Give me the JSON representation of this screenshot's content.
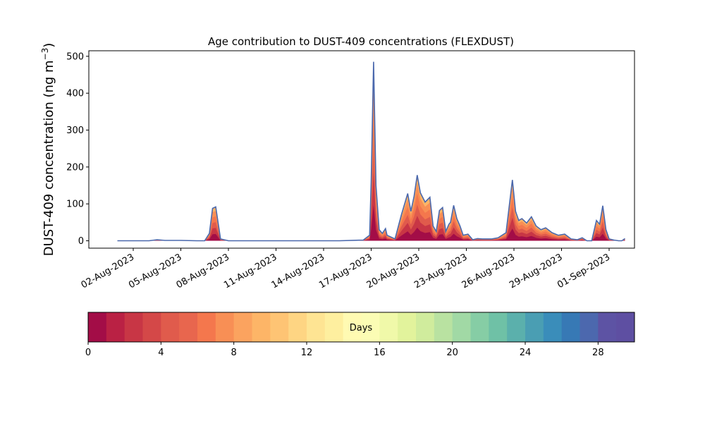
{
  "chart_data": {
    "type": "area",
    "title": "Age contribution to DUST-409 concentrations (FLEXDUST)",
    "ylabel_main": "DUST-409 concentration (ng m",
    "ylabel_sup": "−3",
    "ylabel_close": ")",
    "xlabel": "",
    "x_start": "2023-08-01",
    "x_end": "2023-08-31",
    "ylim": [
      -20,
      515
    ],
    "xlim_days": [
      -1.8,
      32.6
    ],
    "yticks": [
      0,
      100,
      200,
      300,
      400,
      500
    ],
    "ytick_labels": [
      "0",
      "100",
      "200",
      "300",
      "400",
      "500"
    ],
    "xticks_days": [
      1,
      4,
      7,
      10,
      13,
      16,
      19,
      22,
      25,
      28,
      31
    ],
    "xtick_labels": [
      "02-Aug-2023",
      "05-Aug-2023",
      "08-Aug-2023",
      "11-Aug-2023",
      "14-Aug-2023",
      "17-Aug-2023",
      "20-Aug-2023",
      "23-Aug-2023",
      "26-Aug-2023",
      "29-Aug-2023",
      "01-Sep-2023"
    ],
    "total_series_color": "#4a68ad",
    "total": {
      "x_days": [
        0,
        2,
        2.5,
        3,
        4,
        5,
        5.5,
        5.8,
        6.0,
        6.2,
        6.5,
        7,
        10,
        14,
        15.5,
        15.9,
        16.0,
        16.15,
        16.3,
        16.5,
        16.7,
        16.9,
        17.0,
        17.5,
        17.9,
        18.3,
        18.5,
        18.7,
        18.9,
        19.1,
        19.4,
        19.7,
        19.9,
        20.1,
        20.3,
        20.5,
        20.7,
        20.9,
        21.0,
        21.2,
        21.4,
        21.6,
        21.8,
        22.1,
        22.4,
        22.7,
        23.0,
        23.3,
        23.6,
        24.0,
        24.5,
        24.9,
        25.1,
        25.3,
        25.5,
        25.8,
        26.1,
        26.4,
        26.7,
        27.0,
        27.4,
        27.8,
        28.2,
        28.6,
        29.0,
        29.3,
        29.6,
        29.9,
        30.2,
        30.4,
        30.6,
        30.8,
        31.0,
        31.3,
        31.6,
        31.8,
        32.0
      ],
      "values": [
        0,
        0,
        3,
        1,
        1,
        0,
        0,
        20,
        88,
        92,
        5,
        0,
        0,
        0,
        2,
        15,
        160,
        485,
        150,
        30,
        20,
        33,
        15,
        5,
        70,
        128,
        80,
        120,
        178,
        130,
        105,
        118,
        40,
        25,
        82,
        90,
        25,
        45,
        50,
        96,
        60,
        40,
        15,
        18,
        3,
        6,
        5,
        5,
        5,
        8,
        22,
        165,
        80,
        55,
        60,
        48,
        65,
        40,
        30,
        35,
        22,
        15,
        18,
        5,
        3,
        8,
        0,
        0,
        55,
        45,
        95,
        30,
        5,
        2,
        0,
        0,
        6
      ]
    },
    "age_classes": {
      "unit": "Days",
      "min": 0,
      "max": 30,
      "step": 1,
      "ticks": [
        0,
        4,
        8,
        12,
        16,
        20,
        24,
        28
      ],
      "colors": [
        "#a30d47",
        "#ba2144",
        "#c83645",
        "#d44848",
        "#e05b4c",
        "#e8664e",
        "#f4774d",
        "#f88f55",
        "#fba35f",
        "#fdb567",
        "#fec474",
        "#fed583",
        "#fee493",
        "#feef9f",
        "#fffab2",
        "#fbfcb4",
        "#f0f9a9",
        "#e2f39c",
        "#d0ec9d",
        "#b9e2a1",
        "#a1d9a5",
        "#86cda5",
        "#6fc1a6",
        "#5bb0ac",
        "#4a9eb3",
        "#3a8dba",
        "#3779b5",
        "#4c68ae",
        "#5d53a4",
        "#5e4fa2"
      ]
    }
  }
}
